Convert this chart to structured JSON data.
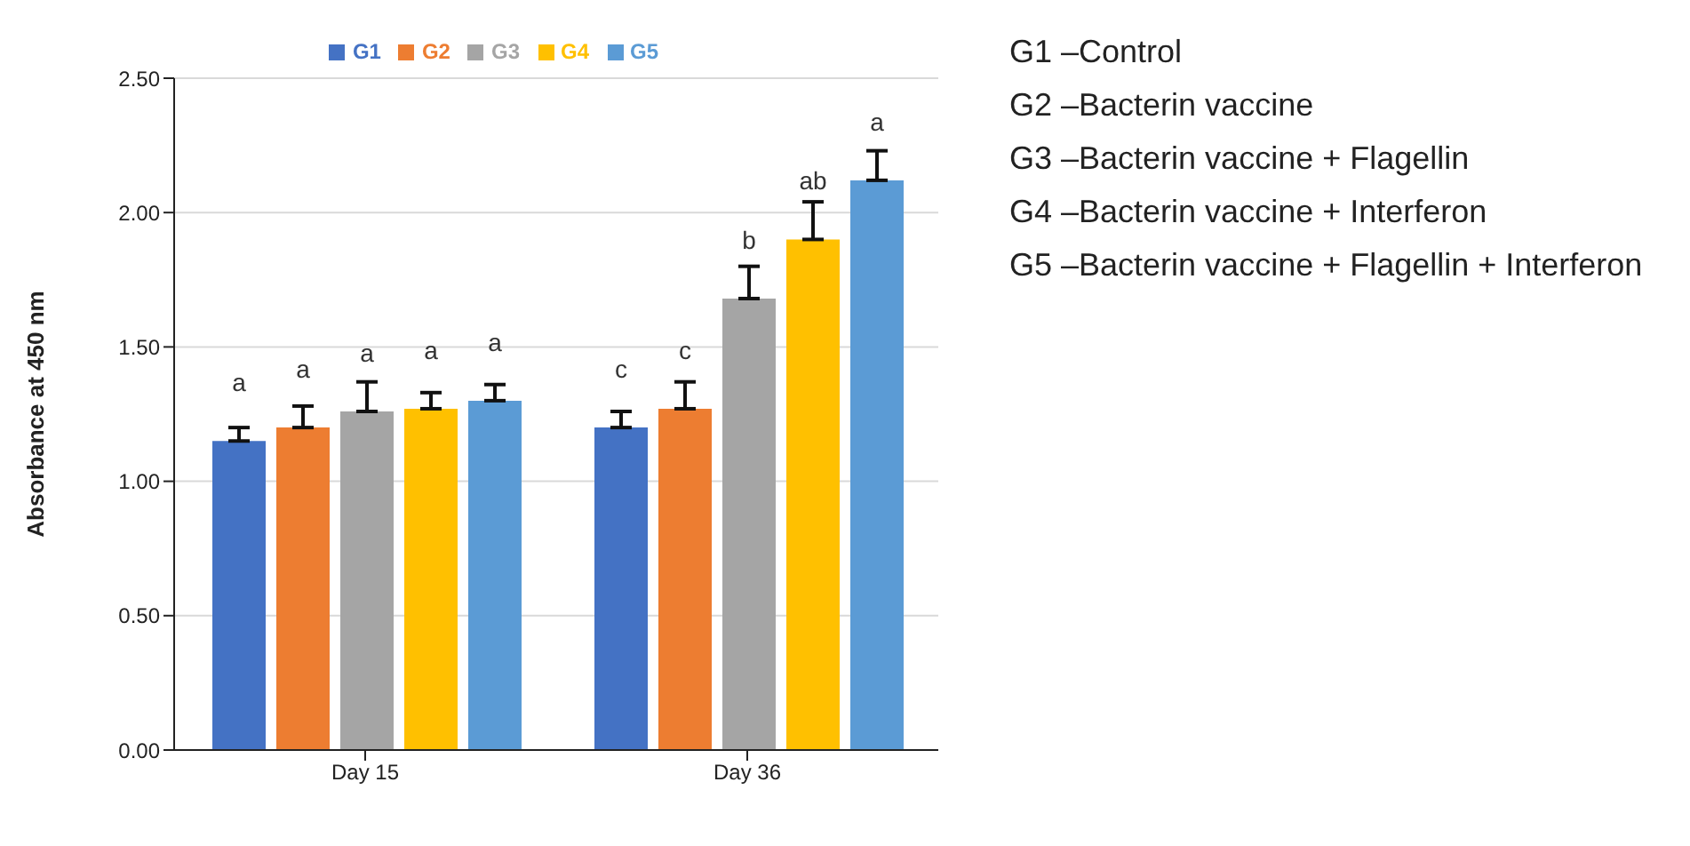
{
  "chart_data": {
    "type": "bar",
    "ylabel": "Absorbance at 450 nm",
    "categories": [
      "Day 15",
      "Day 36"
    ],
    "series": [
      {
        "name": "G1",
        "color": "#4472c4",
        "values": [
          1.15,
          1.2
        ],
        "errors": [
          [
            1.15,
            1.2
          ],
          [
            1.2,
            1.26
          ]
        ],
        "value_labels": [
          "a",
          "c"
        ]
      },
      {
        "name": "G2",
        "color": "#ed7d31",
        "values": [
          1.2,
          1.27
        ],
        "errors": [
          [
            1.2,
            1.28
          ],
          [
            1.27,
            1.37
          ]
        ],
        "value_labels": [
          "a",
          "c"
        ]
      },
      {
        "name": "G3",
        "color": "#a5a5a5",
        "values": [
          1.26,
          1.68
        ],
        "errors": [
          [
            1.26,
            1.37
          ],
          [
            1.68,
            1.8
          ]
        ],
        "value_labels": [
          "a",
          "b"
        ]
      },
      {
        "name": "G4",
        "color": "#ffc000",
        "values": [
          1.27,
          1.9
        ],
        "errors": [
          [
            1.27,
            1.33
          ],
          [
            1.9,
            2.04
          ]
        ],
        "value_labels": [
          "a",
          "ab"
        ]
      },
      {
        "name": "G5",
        "color": "#5b9bd5",
        "values": [
          1.3,
          2.12
        ],
        "errors": [
          [
            1.3,
            1.36
          ],
          [
            2.12,
            2.23
          ]
        ],
        "value_labels": [
          "a",
          "a"
        ]
      }
    ],
    "ylim": [
      0,
      2.5
    ],
    "yticks": [
      {
        "value": 0,
        "label": "0.00"
      },
      {
        "value": 0.5,
        "label": "0.50"
      },
      {
        "value": 1,
        "label": "1.00"
      },
      {
        "value": 1.5,
        "label": "1.50"
      },
      {
        "value": 2,
        "label": "2.00"
      },
      {
        "value": 2.5,
        "label": "2.50"
      }
    ],
    "grid": "y",
    "legend": "top",
    "annotations": [
      "G1 –Control",
      "G2 –Bacterin vaccine",
      "G3 –Bacterin vaccine + Flagellin",
      "G4 –Bacterin vaccine + Interferon",
      "G5 –Bacterin vaccine + Flagellin + Interferon"
    ]
  }
}
